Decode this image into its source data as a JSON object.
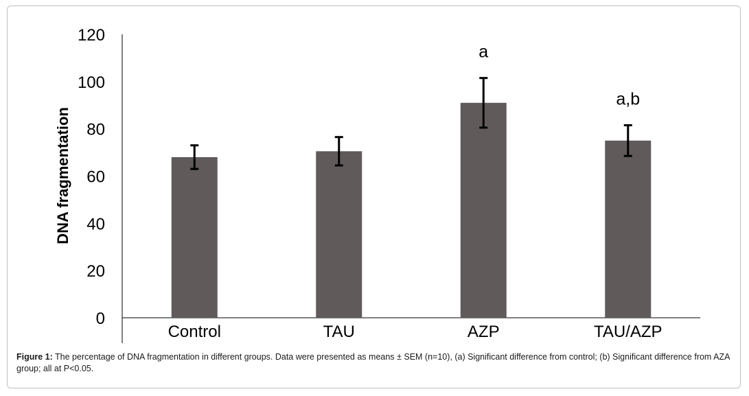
{
  "chart_data": {
    "type": "bar",
    "categories": [
      "Control",
      "TAU",
      "AZP",
      "TAU/AZP"
    ],
    "values": [
      68,
      70.5,
      91,
      75
    ],
    "errors": [
      5,
      6,
      10.5,
      6.5
    ],
    "annotations": [
      "",
      "",
      "a",
      "a,b"
    ],
    "ylabel": "DNA fragmentation",
    "xlabel": "",
    "ylim": [
      0,
      120
    ],
    "yticks": [
      "0",
      "20",
      "40",
      "60",
      "80",
      "100",
      "120"
    ],
    "grid": false,
    "bar_color": "#605a5b",
    "error_color": "#000000"
  },
  "caption": {
    "label": "Figure 1:",
    "text": " The percentage of DNA fragmentation in different groups. Data were presented as means ± SEM (n=10), (a) Significant difference from control; (b) Significant difference from AZA group; all at P<0.05."
  }
}
